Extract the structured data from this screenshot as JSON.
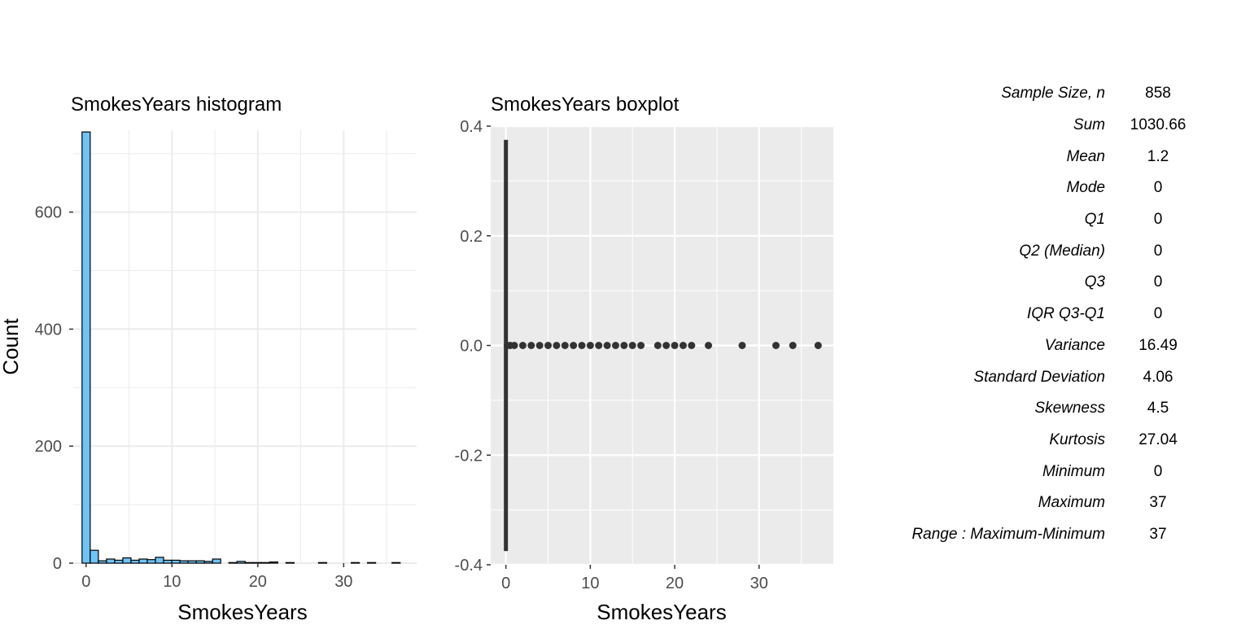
{
  "chart_data": [
    {
      "type": "bar",
      "subtype": "histogram",
      "title": "SmokesYears histogram",
      "xlabel": "SmokesYears",
      "ylabel": "Count",
      "xlim": [
        -1.5,
        38.5
      ],
      "ylim": [
        0,
        740
      ],
      "xticks": [
        0,
        10,
        20,
        30
      ],
      "yticks": [
        0,
        200,
        400,
        600
      ],
      "bin_width": 0.95,
      "bars": [
        {
          "x": 0.0,
          "count": 737
        },
        {
          "x": 0.95,
          "count": 22
        },
        {
          "x": 1.9,
          "count": 4
        },
        {
          "x": 2.85,
          "count": 7
        },
        {
          "x": 3.8,
          "count": 5
        },
        {
          "x": 4.75,
          "count": 9
        },
        {
          "x": 5.7,
          "count": 5
        },
        {
          "x": 6.65,
          "count": 7
        },
        {
          "x": 7.6,
          "count": 6
        },
        {
          "x": 8.55,
          "count": 10
        },
        {
          "x": 9.5,
          "count": 5
        },
        {
          "x": 10.45,
          "count": 5
        },
        {
          "x": 11.4,
          "count": 4
        },
        {
          "x": 12.35,
          "count": 4
        },
        {
          "x": 13.3,
          "count": 4
        },
        {
          "x": 14.25,
          "count": 3
        },
        {
          "x": 15.2,
          "count": 7
        },
        {
          "x": 16.15,
          "count": 0
        },
        {
          "x": 17.1,
          "count": 1
        },
        {
          "x": 18.05,
          "count": 3
        },
        {
          "x": 19.0,
          "count": 1
        },
        {
          "x": 19.95,
          "count": 1
        },
        {
          "x": 20.9,
          "count": 1
        },
        {
          "x": 21.85,
          "count": 2
        },
        {
          "x": 22.8,
          "count": 0
        },
        {
          "x": 23.75,
          "count": 1
        },
        {
          "x": 24.7,
          "count": 0
        },
        {
          "x": 25.65,
          "count": 0
        },
        {
          "x": 26.6,
          "count": 0
        },
        {
          "x": 27.55,
          "count": 1
        },
        {
          "x": 28.5,
          "count": 0
        },
        {
          "x": 29.45,
          "count": 0
        },
        {
          "x": 30.4,
          "count": 0
        },
        {
          "x": 31.35,
          "count": 1
        },
        {
          "x": 32.3,
          "count": 0
        },
        {
          "x": 33.25,
          "count": 1
        },
        {
          "x": 34.2,
          "count": 0
        },
        {
          "x": 35.15,
          "count": 0
        },
        {
          "x": 36.1,
          "count": 1
        }
      ],
      "fill_color": "#6ec3f7",
      "border_color": "#000000",
      "grid": true
    },
    {
      "type": "scatter",
      "subtype": "boxplot",
      "title": "SmokesYears boxplot",
      "xlabel": "SmokesYears",
      "ylabel": "",
      "xlim": [
        -1.8,
        38.8
      ],
      "ylim": [
        -0.4,
        0.4
      ],
      "xticks": [
        0,
        10,
        20,
        30
      ],
      "yticks": [
        -0.4,
        -0.2,
        0.0,
        0.2,
        0.4
      ],
      "box": {
        "min": 0,
        "q1": 0,
        "median": 0,
        "q3": 0,
        "max": 0,
        "half_height": 0.375
      },
      "outliers": [
        0.16,
        0.5,
        1,
        2,
        3,
        4,
        5,
        6,
        7,
        8,
        9,
        10,
        11,
        12,
        13,
        14,
        15,
        16,
        18,
        19,
        20,
        21,
        22,
        24,
        28,
        32,
        34,
        37
      ],
      "panel_color": "#ebebeb",
      "point_color": "#333333",
      "grid": true
    }
  ],
  "stats": [
    {
      "label": "Sample Size, n",
      "value": "858"
    },
    {
      "label": "Sum",
      "value": "1030.66"
    },
    {
      "label": "Mean",
      "value": "1.2"
    },
    {
      "label": "Mode",
      "value": "0"
    },
    {
      "label": "Q1",
      "value": "0"
    },
    {
      "label": "Q2 (Median)",
      "value": "0"
    },
    {
      "label": "Q3",
      "value": "0"
    },
    {
      "label": "IQR Q3-Q1",
      "value": "0"
    },
    {
      "label": "Variance",
      "value": "16.49"
    },
    {
      "label": "Standard Deviation",
      "value": "4.06"
    },
    {
      "label": "Skewness",
      "value": "4.5"
    },
    {
      "label": "Kurtosis",
      "value": "27.04"
    },
    {
      "label": "Minimum",
      "value": "0"
    },
    {
      "label": "Maximum",
      "value": "37"
    },
    {
      "label": "Range : Maximum-Minimum",
      "value": "37"
    }
  ]
}
